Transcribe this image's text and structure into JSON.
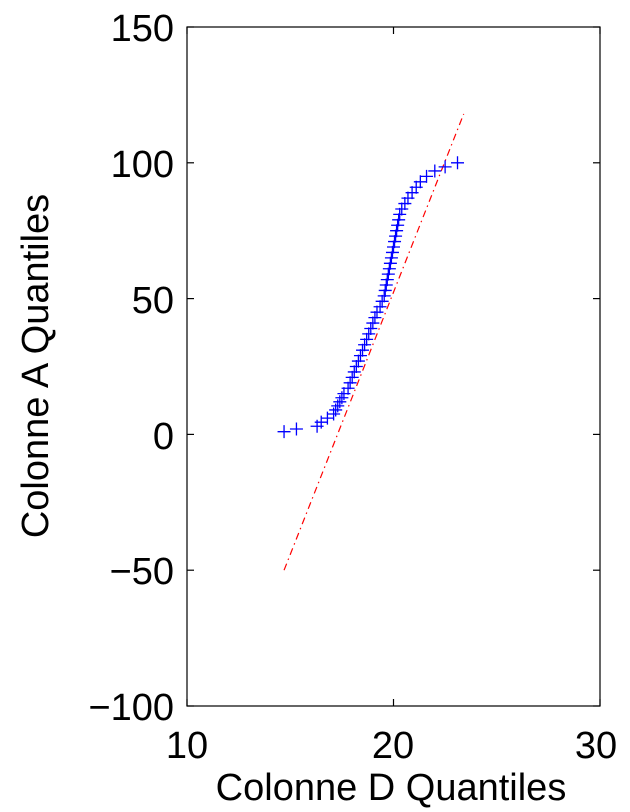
{
  "chart_data": {
    "type": "scatter",
    "title": "",
    "xlabel": "Colonne D Quantiles",
    "ylabel": "Colonne A Quantiles",
    "xlim": [
      10,
      30
    ],
    "ylim": [
      -100,
      150
    ],
    "xticks": [
      "10",
      "20",
      "30"
    ],
    "yticks": [
      "150",
      "100",
      "50",
      "0",
      "−50",
      "−100"
    ],
    "grid": false,
    "legend": "none",
    "colors": {
      "points": "#0000ff",
      "reference_line": "#ff0000",
      "axes": "#000000"
    },
    "points": [
      [
        14.7,
        1
      ],
      [
        15.3,
        2
      ],
      [
        16.3,
        3
      ],
      [
        16.5,
        4.5
      ],
      [
        16.8,
        6
      ],
      [
        17.1,
        7.5
      ],
      [
        17.2,
        9
      ],
      [
        17.3,
        10.5
      ],
      [
        17.4,
        12
      ],
      [
        17.5,
        13.5
      ],
      [
        17.6,
        15
      ],
      [
        17.8,
        17
      ],
      [
        17.9,
        19
      ],
      [
        18.0,
        21
      ],
      [
        18.1,
        23
      ],
      [
        18.2,
        25
      ],
      [
        18.3,
        27
      ],
      [
        18.4,
        29
      ],
      [
        18.5,
        31
      ],
      [
        18.6,
        33
      ],
      [
        18.7,
        35
      ],
      [
        18.8,
        37
      ],
      [
        18.9,
        39
      ],
      [
        19.0,
        41
      ],
      [
        19.1,
        43
      ],
      [
        19.2,
        45
      ],
      [
        19.35,
        47
      ],
      [
        19.45,
        49
      ],
      [
        19.55,
        51
      ],
      [
        19.6,
        53
      ],
      [
        19.65,
        55
      ],
      [
        19.7,
        57
      ],
      [
        19.75,
        59
      ],
      [
        19.8,
        61
      ],
      [
        19.85,
        63
      ],
      [
        19.9,
        65
      ],
      [
        19.95,
        67
      ],
      [
        20.0,
        69
      ],
      [
        20.05,
        71
      ],
      [
        20.1,
        73
      ],
      [
        20.15,
        75
      ],
      [
        20.2,
        77
      ],
      [
        20.25,
        79
      ],
      [
        20.3,
        81
      ],
      [
        20.4,
        83
      ],
      [
        20.55,
        85
      ],
      [
        20.7,
        87
      ],
      [
        20.9,
        89
      ],
      [
        21.1,
        91
      ],
      [
        21.3,
        93
      ],
      [
        21.6,
        95
      ],
      [
        22.0,
        97
      ],
      [
        22.5,
        98.5
      ],
      [
        23.1,
        100
      ]
    ],
    "reference_line": {
      "x": [
        14.7,
        23.4
      ],
      "y": [
        -50,
        118
      ]
    }
  }
}
